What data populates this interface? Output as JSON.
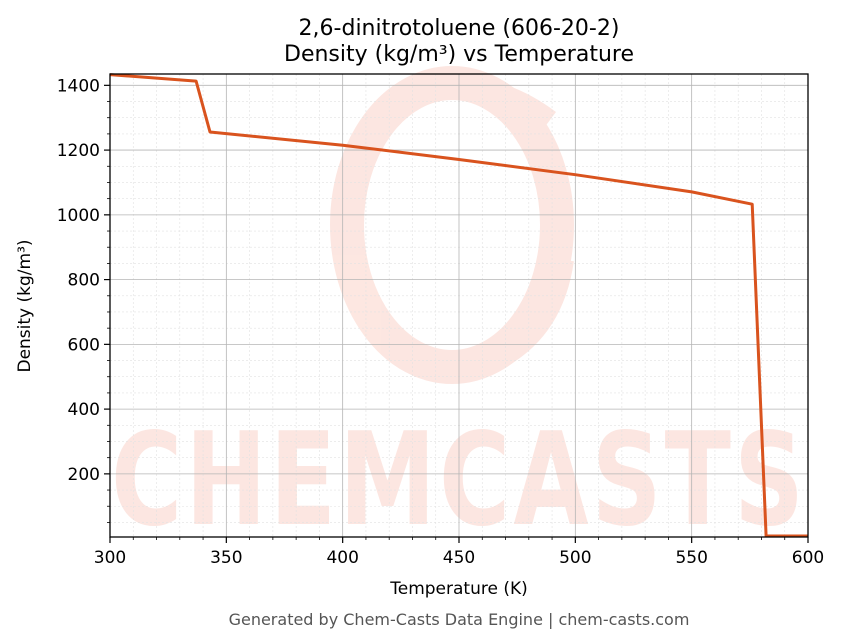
{
  "chart_data": {
    "type": "line",
    "title": "2,6-dinitrotoluene (606-20-2)",
    "subtitle": "Density (kg/m³) vs Temperature",
    "xlabel": "Temperature (K)",
    "ylabel": "Density (kg/m³)",
    "xlim": [
      300,
      600
    ],
    "ylim": [
      5,
      1435
    ],
    "xticks": [
      300,
      350,
      400,
      450,
      500,
      550,
      600
    ],
    "yticks": [
      200,
      400,
      600,
      800,
      1000,
      1200,
      1400
    ],
    "grid": true,
    "series": [
      {
        "color": "#d9531e",
        "x": [
          300,
          337,
          343,
          400,
          450,
          500,
          550,
          576,
          582,
          600
        ],
        "y": [
          1433,
          1413,
          1256,
          1215,
          1171,
          1124,
          1071,
          1033,
          8,
          8
        ]
      }
    ]
  },
  "watermark": {
    "text": "CHEMCASTS",
    "color": "#fbd3c9"
  },
  "footer": "Generated by Chem-Casts Data Engine | chem-casts.com"
}
